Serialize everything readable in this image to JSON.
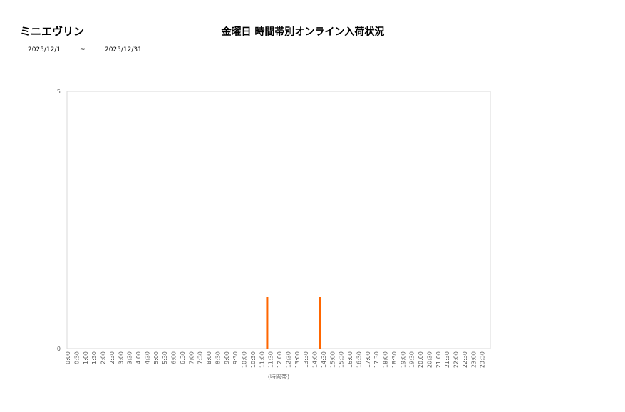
{
  "header": {
    "store_name": "ミニエヴリン",
    "date_from": "2025/12/1",
    "date_sep": "~",
    "date_to": "2025/12/31"
  },
  "chart_data": {
    "type": "bar",
    "title": "金曜日 時間帯別オンライン入荷状況",
    "xlabel": "(時間帯)",
    "ylabel": "",
    "ylim": [
      0,
      5
    ],
    "yticks": [
      "0",
      "5"
    ],
    "grid": false,
    "bar_color": "#ff6600",
    "categories": [
      "0:00",
      "0:30",
      "1:00",
      "1:30",
      "2:00",
      "2:30",
      "3:00",
      "3:30",
      "4:00",
      "4:30",
      "5:00",
      "5:30",
      "6:00",
      "6:30",
      "7:00",
      "7:30",
      "8:00",
      "8:30",
      "9:00",
      "9:30",
      "10:00",
      "10:30",
      "11:00",
      "11:30",
      "12:00",
      "12:30",
      "13:00",
      "13:30",
      "14:00",
      "14:30",
      "15:00",
      "15:30",
      "16:00",
      "16:30",
      "17:00",
      "17:30",
      "18:00",
      "18:30",
      "19:00",
      "19:30",
      "20:00",
      "20:30",
      "21:00",
      "21:30",
      "22:00",
      "22:30",
      "23:00",
      "23:30"
    ],
    "values": [
      0,
      0,
      0,
      0,
      0,
      0,
      0,
      0,
      0,
      0,
      0,
      0,
      0,
      0,
      0,
      0,
      0,
      0,
      0,
      0,
      0,
      0,
      1,
      0,
      0,
      0,
      0,
      0,
      1,
      0,
      0,
      0,
      0,
      0,
      0,
      0,
      0,
      0,
      0,
      0,
      0,
      0,
      0,
      0,
      0,
      0,
      0,
      0
    ]
  }
}
